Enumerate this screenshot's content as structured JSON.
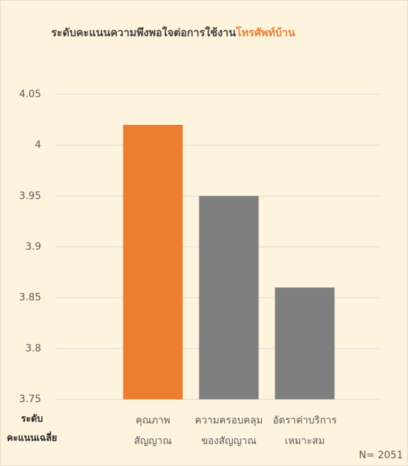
{
  "chart_data": {
    "type": "bar",
    "title": "ระดับคะแนนความพึงพอใจต่อการใช้งาน",
    "title_highlight": "โทรศัพท์บ้าน",
    "y_label": [
      "ระดับ",
      "คะแนนเฉลี่ย"
    ],
    "categories": [
      [
        "คุณภาพ",
        "สัญญาณ"
      ],
      [
        "ความครอบคลุม",
        "ของสัญญาณ"
      ],
      [
        "อัตราค่าบริการ",
        "เหมาะสม"
      ]
    ],
    "values": [
      4.02,
      3.95,
      3.86
    ],
    "colors": [
      "#ed7d31",
      "#7f7f7f",
      "#7f7f7f"
    ],
    "highlight_color": "#ed7d31",
    "ylim": [
      3.75,
      4.05
    ],
    "yticks": [
      3.75,
      3.8,
      3.85,
      3.9,
      3.95,
      4,
      4.05
    ],
    "grid": true,
    "note": "N= 2051"
  }
}
